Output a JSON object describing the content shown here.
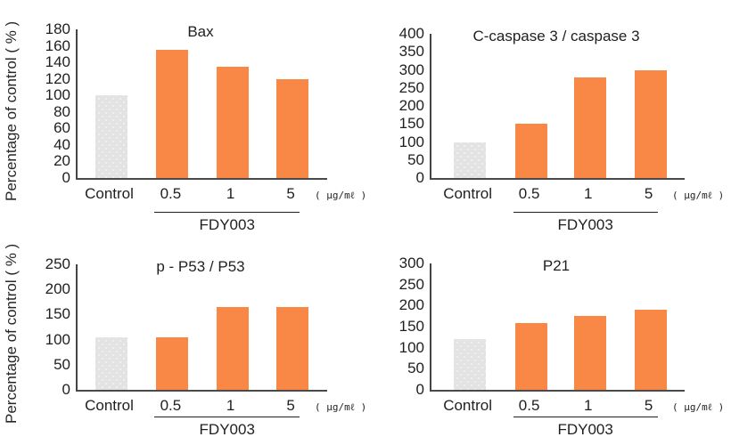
{
  "figure": {
    "ylabel": "Percentage of control ( % )",
    "unit_label": "( μg/mℓ )",
    "group_label": "FDY003",
    "colors": {
      "treatment_bar": "#f98746",
      "control_bar": "#e3e3e4",
      "control_bar_dots": "#efefef",
      "axis": "#4a4a4a",
      "text": "#1f1f1f",
      "background": "#ffffff"
    }
  },
  "chart_data": [
    {
      "type": "bar",
      "title": "Bax",
      "ylabel": "Percentage of control ( % )",
      "categories": [
        "Control",
        "0.5",
        "1",
        "5"
      ],
      "values": [
        100,
        155,
        135,
        120
      ],
      "ylim": [
        0,
        180
      ],
      "ytick_step": 20,
      "yticks": [
        0,
        20,
        40,
        60,
        80,
        100,
        120,
        140,
        160,
        180
      ],
      "unit": "( μg/mℓ )",
      "grid": false,
      "legend": "none",
      "group": {
        "label": "FDY003",
        "members": [
          "0.5",
          "1",
          "5"
        ]
      },
      "bar_roles": [
        "control",
        "treatment",
        "treatment",
        "treatment"
      ]
    },
    {
      "type": "bar",
      "title": "C-caspase 3 / caspase 3",
      "ylabel": "",
      "categories": [
        "Control",
        "0.5",
        "1",
        "5"
      ],
      "values": [
        100,
        150,
        280,
        300
      ],
      "ylim": [
        0,
        400
      ],
      "ytick_step": 50,
      "yticks": [
        0,
        50,
        100,
        150,
        200,
        250,
        300,
        350,
        400
      ],
      "unit": "( μg/mℓ )",
      "grid": false,
      "legend": "none",
      "group": {
        "label": "FDY003",
        "members": [
          "0.5",
          "1",
          "5"
        ]
      },
      "bar_roles": [
        "control",
        "treatment",
        "treatment",
        "treatment"
      ]
    },
    {
      "type": "bar",
      "title": "p - P53 / P53",
      "ylabel": "Percentage of control ( % )",
      "categories": [
        "Control",
        "0.5",
        "1",
        "5"
      ],
      "values": [
        105,
        105,
        165,
        165
      ],
      "ylim": [
        0,
        250
      ],
      "ytick_step": 50,
      "yticks": [
        0,
        50,
        100,
        150,
        200,
        250
      ],
      "unit": "( μg/mℓ )",
      "grid": false,
      "legend": "none",
      "group": {
        "label": "FDY003",
        "members": [
          "0.5",
          "1",
          "5"
        ]
      },
      "bar_roles": [
        "control",
        "treatment",
        "treatment",
        "treatment"
      ]
    },
    {
      "type": "bar",
      "title": "P21",
      "ylabel": "",
      "categories": [
        "Control",
        "0.5",
        "1",
        "5"
      ],
      "values": [
        120,
        158,
        175,
        190
      ],
      "ylim": [
        0,
        300
      ],
      "ytick_step": 50,
      "yticks": [
        0,
        50,
        100,
        150,
        200,
        250,
        300
      ],
      "unit": "( μg/mℓ )",
      "grid": false,
      "legend": "none",
      "group": {
        "label": "FDY003",
        "members": [
          "0.5",
          "1",
          "5"
        ]
      },
      "bar_roles": [
        "control",
        "treatment",
        "treatment",
        "treatment"
      ]
    }
  ]
}
